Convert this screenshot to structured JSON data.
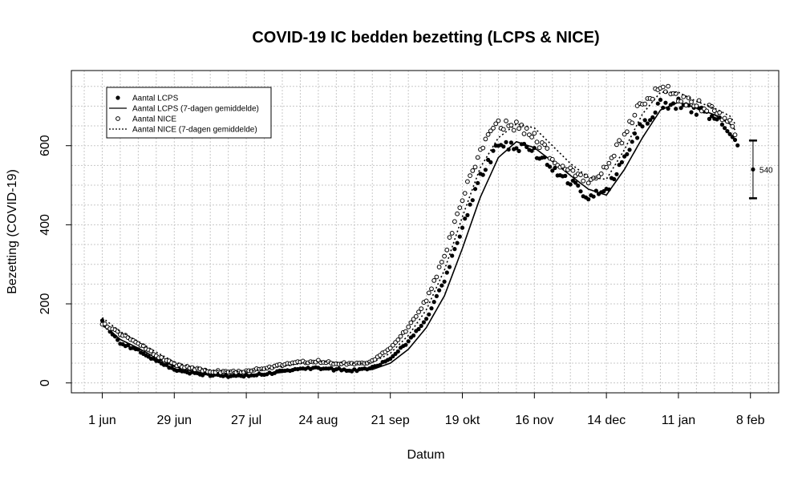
{
  "chart_data": {
    "type": "scatter",
    "title": "COVID-19 IC bedden bezetting (LCPS & NICE)",
    "xlabel": "Datum",
    "ylabel": "Bezetting (COVID-19)",
    "x_start_date": "2020-05-31",
    "xlim": [
      "2020-05-20",
      "2021-02-19"
    ],
    "ylim": [
      -25,
      790
    ],
    "x_ticks": [
      {
        "date": "2020-06-01",
        "label": "1 jun"
      },
      {
        "date": "2020-06-29",
        "label": "29 jun"
      },
      {
        "date": "2020-07-27",
        "label": "27 jul"
      },
      {
        "date": "2020-08-24",
        "label": "24 aug"
      },
      {
        "date": "2020-09-21",
        "label": "21 sep"
      },
      {
        "date": "2020-10-19",
        "label": "19 okt"
      },
      {
        "date": "2020-11-16",
        "label": "16 nov"
      },
      {
        "date": "2020-12-14",
        "label": "14 dec"
      },
      {
        "date": "2021-01-11",
        "label": "11 jan"
      },
      {
        "date": "2021-02-08",
        "label": "8 feb"
      }
    ],
    "y_ticks": [
      0,
      200,
      400,
      600
    ],
    "grid": true,
    "legend_position": "top-left",
    "series": [
      {
        "name": "Aantal LCPS",
        "style": "filled-points",
        "color": "#000000",
        "knots": [
          [
            "2020-06-01",
            155
          ],
          [
            "2020-06-08",
            100
          ],
          [
            "2020-06-15",
            82
          ],
          [
            "2020-06-22",
            55
          ],
          [
            "2020-06-29",
            35
          ],
          [
            "2020-07-06",
            25
          ],
          [
            "2020-07-13",
            20
          ],
          [
            "2020-07-20",
            17
          ],
          [
            "2020-07-27",
            18
          ],
          [
            "2020-08-03",
            22
          ],
          [
            "2020-08-10",
            30
          ],
          [
            "2020-08-17",
            37
          ],
          [
            "2020-08-24",
            38
          ],
          [
            "2020-08-31",
            34
          ],
          [
            "2020-09-07",
            32
          ],
          [
            "2020-09-14",
            38
          ],
          [
            "2020-09-21",
            62
          ],
          [
            "2020-09-28",
            105
          ],
          [
            "2020-10-05",
            162
          ],
          [
            "2020-10-12",
            260
          ],
          [
            "2020-10-19",
            390
          ],
          [
            "2020-10-26",
            520
          ],
          [
            "2020-11-02",
            605
          ],
          [
            "2020-11-09",
            600
          ],
          [
            "2020-11-16",
            585
          ],
          [
            "2020-11-23",
            545
          ],
          [
            "2020-11-30",
            510
          ],
          [
            "2020-12-07",
            470
          ],
          [
            "2020-12-14",
            485
          ],
          [
            "2020-12-21",
            575
          ],
          [
            "2020-12-28",
            655
          ],
          [
            "2021-01-04",
            705
          ],
          [
            "2021-01-11",
            705
          ],
          [
            "2021-01-18",
            688
          ],
          [
            "2021-01-25",
            670
          ],
          [
            "2021-01-31",
            640
          ],
          [
            "2021-02-03",
            605
          ]
        ]
      },
      {
        "name": "Aantal LCPS (7-dagen gemiddelde)",
        "style": "solid-line",
        "color": "#000000",
        "knots": [
          [
            "2020-06-01",
            150
          ],
          [
            "2020-06-08",
            110
          ],
          [
            "2020-06-15",
            88
          ],
          [
            "2020-06-22",
            63
          ],
          [
            "2020-06-29",
            42
          ],
          [
            "2020-07-06",
            30
          ],
          [
            "2020-07-13",
            23
          ],
          [
            "2020-07-20",
            19
          ],
          [
            "2020-07-27",
            18
          ],
          [
            "2020-08-03",
            21
          ],
          [
            "2020-08-10",
            27
          ],
          [
            "2020-08-17",
            34
          ],
          [
            "2020-08-24",
            38
          ],
          [
            "2020-08-31",
            36
          ],
          [
            "2020-09-07",
            33
          ],
          [
            "2020-09-14",
            34
          ],
          [
            "2020-09-21",
            50
          ],
          [
            "2020-09-28",
            85
          ],
          [
            "2020-10-05",
            140
          ],
          [
            "2020-10-12",
            220
          ],
          [
            "2020-10-19",
            340
          ],
          [
            "2020-10-26",
            470
          ],
          [
            "2020-11-02",
            570
          ],
          [
            "2020-11-09",
            610
          ],
          [
            "2020-11-16",
            595
          ],
          [
            "2020-11-23",
            560
          ],
          [
            "2020-11-30",
            525
          ],
          [
            "2020-12-07",
            490
          ],
          [
            "2020-12-14",
            475
          ],
          [
            "2020-12-21",
            540
          ],
          [
            "2020-12-28",
            620
          ],
          [
            "2021-01-04",
            690
          ],
          [
            "2021-01-11",
            710
          ],
          [
            "2021-01-18",
            695
          ],
          [
            "2021-01-25",
            678
          ],
          [
            "2021-01-31",
            655
          ],
          [
            "2021-02-02",
            640
          ]
        ]
      },
      {
        "name": "Aantal NICE",
        "style": "open-points",
        "color": "#000000",
        "knots": [
          [
            "2020-06-01",
            150
          ],
          [
            "2020-06-08",
            125
          ],
          [
            "2020-06-15",
            100
          ],
          [
            "2020-06-22",
            70
          ],
          [
            "2020-06-29",
            47
          ],
          [
            "2020-07-06",
            37
          ],
          [
            "2020-07-13",
            30
          ],
          [
            "2020-07-20",
            27
          ],
          [
            "2020-07-27",
            30
          ],
          [
            "2020-08-03",
            37
          ],
          [
            "2020-08-10",
            45
          ],
          [
            "2020-08-17",
            52
          ],
          [
            "2020-08-24",
            55
          ],
          [
            "2020-08-31",
            50
          ],
          [
            "2020-09-07",
            48
          ],
          [
            "2020-09-14",
            55
          ],
          [
            "2020-09-21",
            90
          ],
          [
            "2020-09-28",
            140
          ],
          [
            "2020-10-05",
            210
          ],
          [
            "2020-10-12",
            320
          ],
          [
            "2020-10-19",
            470
          ],
          [
            "2020-10-26",
            590
          ],
          [
            "2020-11-02",
            655
          ],
          [
            "2020-11-09",
            650
          ],
          [
            "2020-11-16",
            620
          ],
          [
            "2020-11-23",
            570
          ],
          [
            "2020-11-30",
            535
          ],
          [
            "2020-12-07",
            510
          ],
          [
            "2020-12-14",
            540
          ],
          [
            "2020-12-21",
            630
          ],
          [
            "2020-12-28",
            710
          ],
          [
            "2021-01-04",
            745
          ],
          [
            "2021-01-11",
            725
          ],
          [
            "2021-01-18",
            705
          ],
          [
            "2021-01-25",
            690
          ],
          [
            "2021-01-31",
            665
          ],
          [
            "2021-02-02",
            640
          ]
        ]
      },
      {
        "name": "Aantal NICE (7-dagen gemiddelde)",
        "style": "dotted-line",
        "color": "#000000",
        "knots": [
          [
            "2020-06-01",
            165
          ],
          [
            "2020-06-08",
            130
          ],
          [
            "2020-06-15",
            105
          ],
          [
            "2020-06-22",
            78
          ],
          [
            "2020-06-29",
            53
          ],
          [
            "2020-07-06",
            40
          ],
          [
            "2020-07-13",
            33
          ],
          [
            "2020-07-20",
            29
          ],
          [
            "2020-07-27",
            30
          ],
          [
            "2020-08-03",
            35
          ],
          [
            "2020-08-10",
            42
          ],
          [
            "2020-08-17",
            49
          ],
          [
            "2020-08-24",
            54
          ],
          [
            "2020-08-31",
            52
          ],
          [
            "2020-09-07",
            49
          ],
          [
            "2020-09-14",
            52
          ],
          [
            "2020-09-21",
            75
          ],
          [
            "2020-09-28",
            120
          ],
          [
            "2020-10-05",
            185
          ],
          [
            "2020-10-12",
            285
          ],
          [
            "2020-10-19",
            420
          ],
          [
            "2020-10-26",
            545
          ],
          [
            "2020-11-02",
            620
          ],
          [
            "2020-11-09",
            655
          ],
          [
            "2020-11-16",
            645
          ],
          [
            "2020-11-23",
            600
          ],
          [
            "2020-11-30",
            555
          ],
          [
            "2020-12-07",
            520
          ],
          [
            "2020-12-14",
            515
          ],
          [
            "2020-12-21",
            590
          ],
          [
            "2020-12-28",
            680
          ],
          [
            "2021-01-04",
            735
          ],
          [
            "2021-01-11",
            735
          ],
          [
            "2021-01-18",
            712
          ],
          [
            "2021-01-25",
            695
          ],
          [
            "2021-01-31",
            675
          ],
          [
            "2021-02-02",
            655
          ]
        ]
      }
    ],
    "error_bar": {
      "date": "2021-02-09",
      "value": 540,
      "low": 467,
      "high": 613,
      "label": "540"
    }
  }
}
